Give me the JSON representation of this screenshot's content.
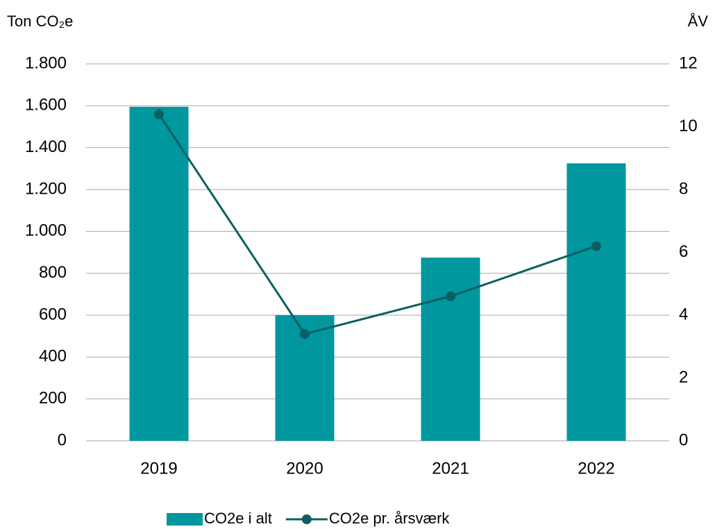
{
  "chart_data": {
    "type": "bar-line",
    "ylabel": "Ton CO₂e",
    "y2label": "ÅV",
    "categories": [
      "2019",
      "2020",
      "2021",
      "2022"
    ],
    "series": [
      {
        "name": "CO2e i alt",
        "type": "bar",
        "color": "#00979f",
        "values": [
          1595,
          600,
          875,
          1325
        ]
      },
      {
        "name": "CO2e pr. årsværk",
        "type": "line",
        "axis": "y2",
        "color": "#0b5e63",
        "values": [
          10.4,
          3.4,
          4.6,
          6.2
        ]
      }
    ],
    "ylim": [
      0,
      1800
    ],
    "yticks": [
      0,
      200,
      400,
      600,
      800,
      {
        "value": 1000,
        "label": "1.000"
      },
      {
        "value": 1200,
        "label": "1.200"
      },
      {
        "value": 1400,
        "label": "1.400"
      },
      {
        "value": 1600,
        "label": "1.600"
      },
      {
        "value": 1800,
        "label": "1.800"
      }
    ],
    "y2lim": [
      0,
      12
    ],
    "y2ticks": [
      0,
      2,
      4,
      6,
      8,
      10,
      12
    ],
    "grid": true,
    "legend": "bottom"
  }
}
